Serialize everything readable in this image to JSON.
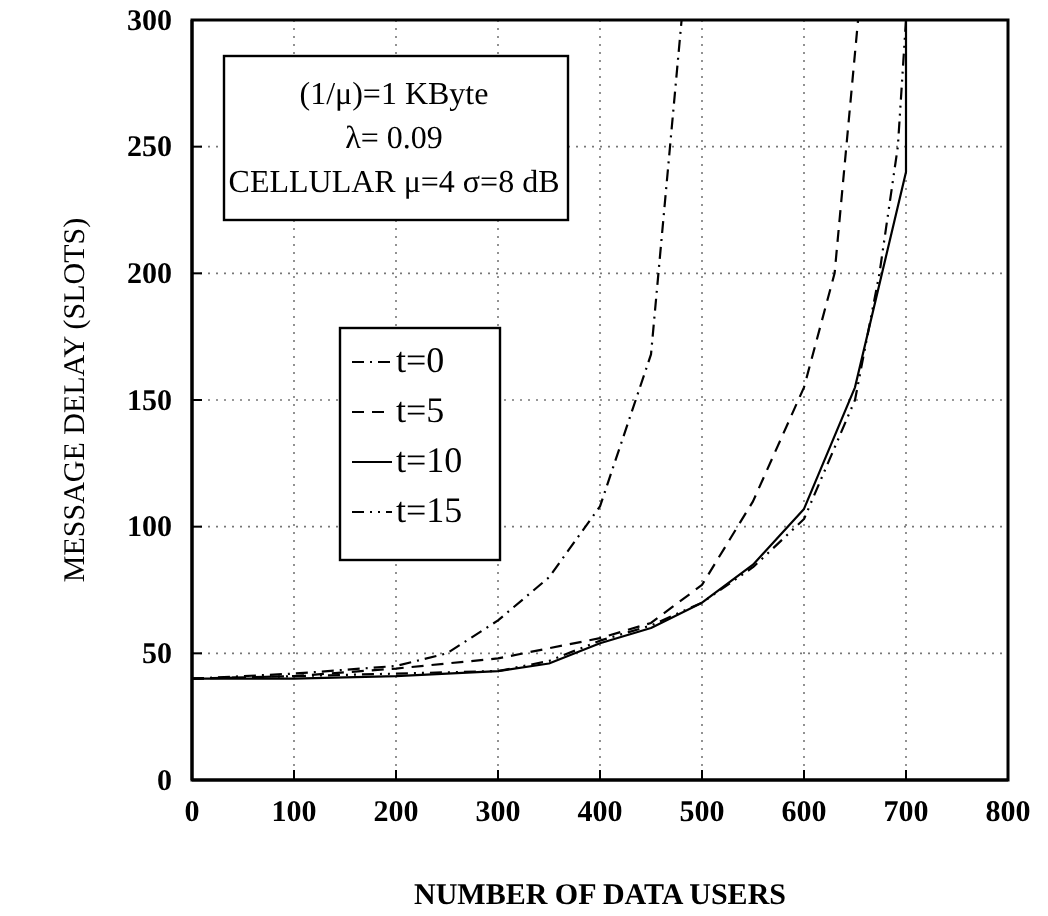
{
  "chart_data": {
    "type": "line",
    "xlabel": "NUMBER OF DATA USERS",
    "ylabel": "MESSAGE DELAY (SLOTS)",
    "xlim": [
      0,
      800
    ],
    "xticks": [
      0,
      100,
      200,
      300,
      400,
      500,
      600,
      700,
      800
    ],
    "ylim": [
      0,
      300
    ],
    "yticks": [
      0,
      50,
      100,
      150,
      200,
      250,
      300
    ],
    "grid": true,
    "legend": "left",
    "marker": "none",
    "annotations": [
      "(1/μ)=1 KByte",
      "λ= 0.09",
      "CELLULAR μ=4 σ=8 dB"
    ],
    "series": [
      {
        "name": "t=0",
        "color": "#000000",
        "line_style": "dashdot",
        "x": [
          0,
          100,
          200,
          250,
          300,
          350,
          400,
          450,
          480
        ],
        "values": [
          40,
          42,
          45,
          50,
          63,
          80,
          108,
          168,
          300
        ]
      },
      {
        "name": "t=5",
        "color": "#000000",
        "line_style": "dashed",
        "x": [
          0,
          100,
          200,
          300,
          350,
          400,
          450,
          500,
          550,
          600,
          630,
          653
        ],
        "values": [
          40,
          41,
          44,
          48,
          52,
          56,
          62,
          77,
          110,
          155,
          200,
          300
        ]
      },
      {
        "name": "t=10",
        "color": "#000000",
        "line_style": "solid",
        "x": [
          0,
          100,
          200,
          300,
          350,
          400,
          450,
          500,
          550,
          600,
          650,
          700,
          700
        ],
        "values": [
          40,
          40,
          41,
          43,
          46,
          54,
          60,
          70,
          85,
          107,
          155,
          240,
          300
        ]
      },
      {
        "name": "t=15",
        "color": "#000000",
        "line_style": "dashdotdot",
        "x": [
          0,
          100,
          200,
          300,
          350,
          400,
          450,
          500,
          550,
          600,
          650,
          674,
          692,
          700
        ],
        "values": [
          40,
          41,
          42,
          43,
          47,
          55,
          61,
          70,
          84,
          103,
          150,
          200,
          250,
          300
        ]
      }
    ]
  }
}
